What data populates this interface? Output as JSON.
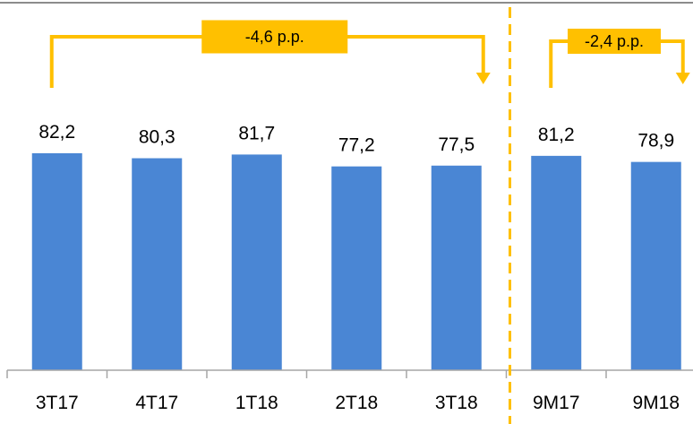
{
  "chart_data": {
    "type": "bar",
    "title": "",
    "xlabel": "",
    "ylabel": "",
    "categories": [
      "3T17",
      "4T17",
      "1T18",
      "2T18",
      "3T18",
      "9M17",
      "9M18"
    ],
    "values": [
      82.2,
      80.3,
      81.7,
      77.2,
      77.5,
      81.2,
      78.9
    ],
    "value_labels": [
      "82,2",
      "80,3",
      "81,7",
      "77,2",
      "77,5",
      "81,2",
      "78,9"
    ],
    "ylim": [
      0,
      100
    ],
    "grid": false,
    "legend": "none",
    "annotations": [
      {
        "text": "-4,6 p.p.",
        "from_category": "3T17",
        "to_category": "3T18"
      },
      {
        "text": "-2,4 p.p.",
        "from_category": "9M17",
        "to_category": "9M18"
      }
    ],
    "divider_after_category": "3T18"
  },
  "colors": {
    "bar": "#4A86D4",
    "accent": "#FFC000",
    "axis": "#A6A6A6",
    "frame": "#8C8C8C"
  }
}
